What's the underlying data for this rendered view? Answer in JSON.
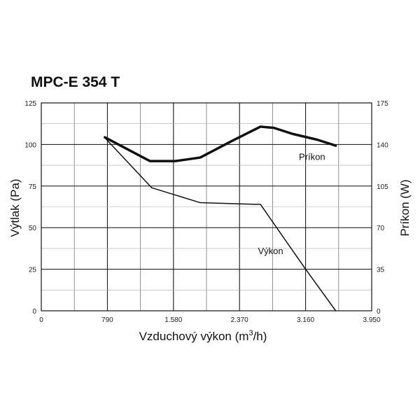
{
  "chart_data": {
    "type": "line",
    "title": "MPC-E 354 T",
    "xlabel": "Vzduchový výkon (m³/h)",
    "ylabel": "Výtlak (Pa)",
    "y2label": "Príkon (W)",
    "xlim": [
      0,
      3950
    ],
    "ylim": [
      0,
      125
    ],
    "y2lim": [
      0,
      175
    ],
    "x_ticks": [
      {
        "value": 0,
        "label": "0"
      },
      {
        "value": 790,
        "label": "790"
      },
      {
        "value": 1580,
        "label": "1.580"
      },
      {
        "value": 2370,
        "label": "2.370"
      },
      {
        "value": 3160,
        "label": "3.160"
      },
      {
        "value": 3950,
        "label": "3.950"
      }
    ],
    "y_ticks": [
      0,
      25,
      50,
      75,
      100,
      125
    ],
    "y2_ticks": [
      0,
      35,
      70,
      105,
      140,
      175
    ],
    "grid": true,
    "series": [
      {
        "name": "Výkon",
        "axis": "left",
        "x": [
          760,
          1320,
          1900,
          2550,
          2620,
          3160,
          3520
        ],
        "y": [
          104,
          74,
          65,
          64,
          64,
          25,
          0
        ]
      },
      {
        "name": "Príkon",
        "axis": "right",
        "x": [
          760,
          1300,
          1600,
          1900,
          2280,
          2620,
          2780,
          3000,
          3300,
          3520
        ],
        "y": [
          146,
          126,
          126,
          129,
          143,
          155,
          154,
          149,
          144,
          139
        ]
      }
    ]
  }
}
